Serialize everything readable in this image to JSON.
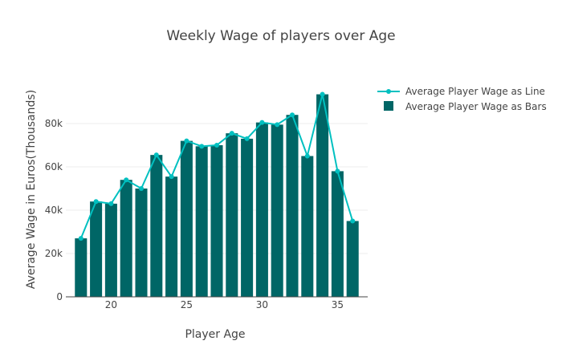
{
  "chart_data": {
    "type": "bar",
    "title": "Weekly Wage of players over Age",
    "xlabel": "Player Age",
    "ylabel": "Average Wage in Euros(Thousands)",
    "xlim": [
      17,
      37
    ],
    "ylim": [
      0,
      100000
    ],
    "x_ticks": [
      20,
      25,
      30,
      35
    ],
    "x_tick_labels": [
      "20",
      "25",
      "30",
      "35"
    ],
    "y_ticks": [
      0,
      20000,
      40000,
      60000,
      80000
    ],
    "y_tick_labels": [
      "0",
      "20k",
      "40k",
      "60k",
      "80k"
    ],
    "grid": true,
    "legend_position": "top-right",
    "colors": {
      "bars": "#006666",
      "line": "#00c0c0",
      "grid": "#eeeeee",
      "axis": "#444444"
    },
    "x": [
      18,
      19,
      20,
      21,
      22,
      23,
      24,
      25,
      26,
      27,
      28,
      29,
      30,
      31,
      32,
      33,
      34,
      35,
      36
    ],
    "series": [
      {
        "name": "Average Player Wage as Line",
        "type": "line",
        "values": [
          27000,
          44000,
          43000,
          54000,
          50000,
          65500,
          55500,
          72000,
          69500,
          70000,
          75500,
          73000,
          80500,
          79500,
          84000,
          65000,
          93500,
          58000,
          35000
        ]
      },
      {
        "name": "Average Player Wage as Bars",
        "type": "bar",
        "values": [
          27000,
          44000,
          43000,
          54000,
          50000,
          65500,
          55500,
          72000,
          69500,
          70000,
          75500,
          73000,
          80500,
          79500,
          84000,
          65000,
          93500,
          58000,
          35000
        ]
      }
    ]
  }
}
